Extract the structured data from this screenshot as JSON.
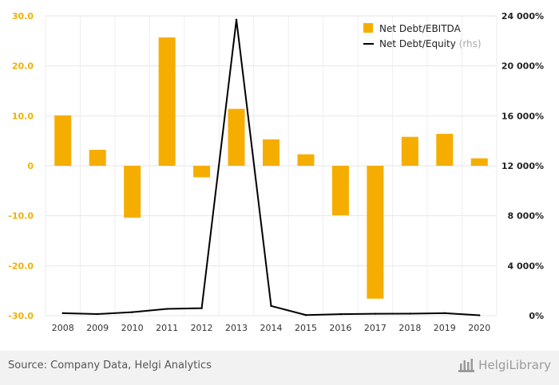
{
  "chart_data": {
    "type": "bar+line",
    "categories": [
      "2008",
      "2009",
      "2010",
      "2011",
      "2012",
      "2013",
      "2014",
      "2015",
      "2016",
      "2017",
      "2018",
      "2019",
      "2020"
    ],
    "series": [
      {
        "name": "Net Debt/EBITDA",
        "type": "bar",
        "axis": "left",
        "color": "#f5ae00",
        "values": [
          10.1,
          3.2,
          -10.4,
          25.7,
          -2.3,
          11.4,
          5.3,
          2.3,
          -9.9,
          -26.6,
          5.8,
          6.4,
          1.5
        ]
      },
      {
        "name": "Net Debt/Equity",
        "suffix": "(rhs)",
        "type": "line",
        "axis": "right",
        "color": "#000000",
        "values": [
          200,
          130,
          280,
          540,
          600,
          23700,
          780,
          50,
          120,
          150,
          160,
          200,
          30
        ]
      }
    ],
    "left_axis": {
      "ylim": [
        -30,
        30
      ],
      "ticks": [
        30,
        20,
        10,
        0,
        -10,
        -20,
        -30
      ],
      "tick_labels": [
        "30.0",
        "20.0",
        "10.0",
        "0",
        "-10.0",
        "-20.0",
        "-30.0"
      ]
    },
    "right_axis": {
      "ylim": [
        0,
        24000
      ],
      "ticks": [
        24000,
        20000,
        16000,
        12000,
        8000,
        4000,
        0
      ],
      "tick_labels": [
        "24 000%",
        "20 000%",
        "16 000%",
        "12 000%",
        "8 000%",
        "4 000%",
        "0%"
      ]
    },
    "legend_position": "top-right"
  },
  "footer": {
    "source": "Source: Company Data, Helgi Analytics",
    "logo_text": "HelgiLibrary"
  }
}
